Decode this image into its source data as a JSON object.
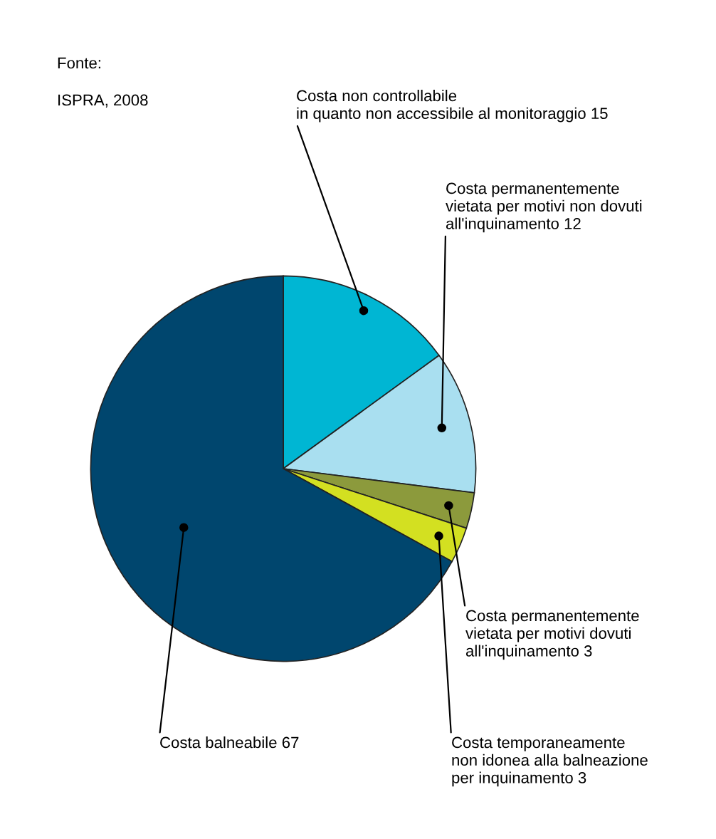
{
  "chart_data": {
    "type": "pie",
    "categories": [
      "Costa non controllabile\nin quanto non accessibile al monitoraggio 15",
      "Costa permanentemente\nvietata per motivi non dovuti\nall'inquinamento 12",
      "Costa permanentemente\nvietata per motivi dovuti\nall'inquinamento 3",
      "Costa temporaneamente\nnon idonea alla balneazione\nper inquinamento 3",
      "Costa balneabile 67"
    ],
    "values": [
      15,
      12,
      3,
      3,
      67
    ],
    "colors": [
      "#00b6d3",
      "#a9dff0",
      "#8c9a3c",
      "#d3e021",
      "#00466e"
    ],
    "legend": false,
    "annotations": [
      "Fonte:",
      "ISPRA, 2008"
    ]
  }
}
